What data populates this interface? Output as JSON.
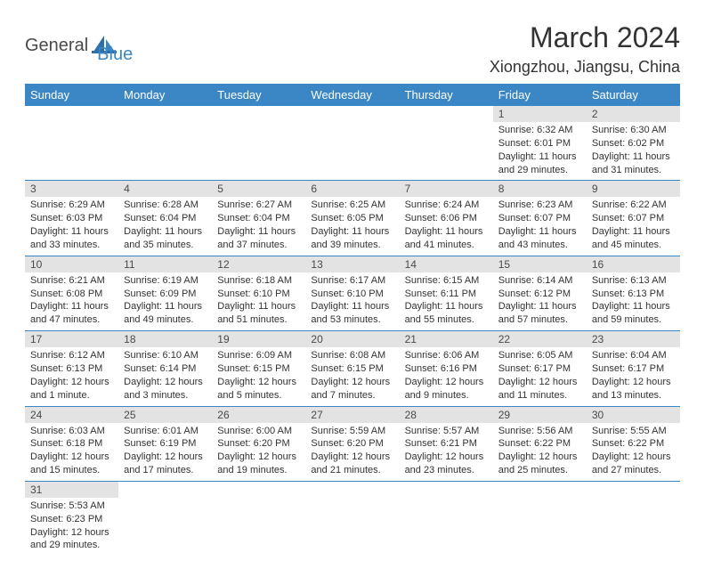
{
  "logo": {
    "part1": "General",
    "part2": "Blue"
  },
  "title": "March 2024",
  "location": "Xiongzhou, Jiangsu, China",
  "colors": {
    "header_bg": "#3b86c4",
    "header_text": "#ffffff",
    "daynum_bg": "#e3e3e3",
    "text": "#333333",
    "logo_gray": "#4a4a4a",
    "logo_blue": "#3b86c4",
    "border": "#3b86c4"
  },
  "weekdays": [
    "Sunday",
    "Monday",
    "Tuesday",
    "Wednesday",
    "Thursday",
    "Friday",
    "Saturday"
  ],
  "weeks": [
    [
      null,
      null,
      null,
      null,
      null,
      {
        "n": "1",
        "sunrise": "6:32 AM",
        "sunset": "6:01 PM",
        "daylight": "11 hours and 29 minutes."
      },
      {
        "n": "2",
        "sunrise": "6:30 AM",
        "sunset": "6:02 PM",
        "daylight": "11 hours and 31 minutes."
      }
    ],
    [
      {
        "n": "3",
        "sunrise": "6:29 AM",
        "sunset": "6:03 PM",
        "daylight": "11 hours and 33 minutes."
      },
      {
        "n": "4",
        "sunrise": "6:28 AM",
        "sunset": "6:04 PM",
        "daylight": "11 hours and 35 minutes."
      },
      {
        "n": "5",
        "sunrise": "6:27 AM",
        "sunset": "6:04 PM",
        "daylight": "11 hours and 37 minutes."
      },
      {
        "n": "6",
        "sunrise": "6:25 AM",
        "sunset": "6:05 PM",
        "daylight": "11 hours and 39 minutes."
      },
      {
        "n": "7",
        "sunrise": "6:24 AM",
        "sunset": "6:06 PM",
        "daylight": "11 hours and 41 minutes."
      },
      {
        "n": "8",
        "sunrise": "6:23 AM",
        "sunset": "6:07 PM",
        "daylight": "11 hours and 43 minutes."
      },
      {
        "n": "9",
        "sunrise": "6:22 AM",
        "sunset": "6:07 PM",
        "daylight": "11 hours and 45 minutes."
      }
    ],
    [
      {
        "n": "10",
        "sunrise": "6:21 AM",
        "sunset": "6:08 PM",
        "daylight": "11 hours and 47 minutes."
      },
      {
        "n": "11",
        "sunrise": "6:19 AM",
        "sunset": "6:09 PM",
        "daylight": "11 hours and 49 minutes."
      },
      {
        "n": "12",
        "sunrise": "6:18 AM",
        "sunset": "6:10 PM",
        "daylight": "11 hours and 51 minutes."
      },
      {
        "n": "13",
        "sunrise": "6:17 AM",
        "sunset": "6:10 PM",
        "daylight": "11 hours and 53 minutes."
      },
      {
        "n": "14",
        "sunrise": "6:15 AM",
        "sunset": "6:11 PM",
        "daylight": "11 hours and 55 minutes."
      },
      {
        "n": "15",
        "sunrise": "6:14 AM",
        "sunset": "6:12 PM",
        "daylight": "11 hours and 57 minutes."
      },
      {
        "n": "16",
        "sunrise": "6:13 AM",
        "sunset": "6:13 PM",
        "daylight": "11 hours and 59 minutes."
      }
    ],
    [
      {
        "n": "17",
        "sunrise": "6:12 AM",
        "sunset": "6:13 PM",
        "daylight": "12 hours and 1 minute."
      },
      {
        "n": "18",
        "sunrise": "6:10 AM",
        "sunset": "6:14 PM",
        "daylight": "12 hours and 3 minutes."
      },
      {
        "n": "19",
        "sunrise": "6:09 AM",
        "sunset": "6:15 PM",
        "daylight": "12 hours and 5 minutes."
      },
      {
        "n": "20",
        "sunrise": "6:08 AM",
        "sunset": "6:15 PM",
        "daylight": "12 hours and 7 minutes."
      },
      {
        "n": "21",
        "sunrise": "6:06 AM",
        "sunset": "6:16 PM",
        "daylight": "12 hours and 9 minutes."
      },
      {
        "n": "22",
        "sunrise": "6:05 AM",
        "sunset": "6:17 PM",
        "daylight": "12 hours and 11 minutes."
      },
      {
        "n": "23",
        "sunrise": "6:04 AM",
        "sunset": "6:17 PM",
        "daylight": "12 hours and 13 minutes."
      }
    ],
    [
      {
        "n": "24",
        "sunrise": "6:03 AM",
        "sunset": "6:18 PM",
        "daylight": "12 hours and 15 minutes."
      },
      {
        "n": "25",
        "sunrise": "6:01 AM",
        "sunset": "6:19 PM",
        "daylight": "12 hours and 17 minutes."
      },
      {
        "n": "26",
        "sunrise": "6:00 AM",
        "sunset": "6:20 PM",
        "daylight": "12 hours and 19 minutes."
      },
      {
        "n": "27",
        "sunrise": "5:59 AM",
        "sunset": "6:20 PM",
        "daylight": "12 hours and 21 minutes."
      },
      {
        "n": "28",
        "sunrise": "5:57 AM",
        "sunset": "6:21 PM",
        "daylight": "12 hours and 23 minutes."
      },
      {
        "n": "29",
        "sunrise": "5:56 AM",
        "sunset": "6:22 PM",
        "daylight": "12 hours and 25 minutes."
      },
      {
        "n": "30",
        "sunrise": "5:55 AM",
        "sunset": "6:22 PM",
        "daylight": "12 hours and 27 minutes."
      }
    ],
    [
      {
        "n": "31",
        "sunrise": "5:53 AM",
        "sunset": "6:23 PM",
        "daylight": "12 hours and 29 minutes."
      },
      null,
      null,
      null,
      null,
      null,
      null
    ]
  ],
  "labels": {
    "sunrise": "Sunrise: ",
    "sunset": "Sunset: ",
    "daylight": "Daylight: "
  }
}
